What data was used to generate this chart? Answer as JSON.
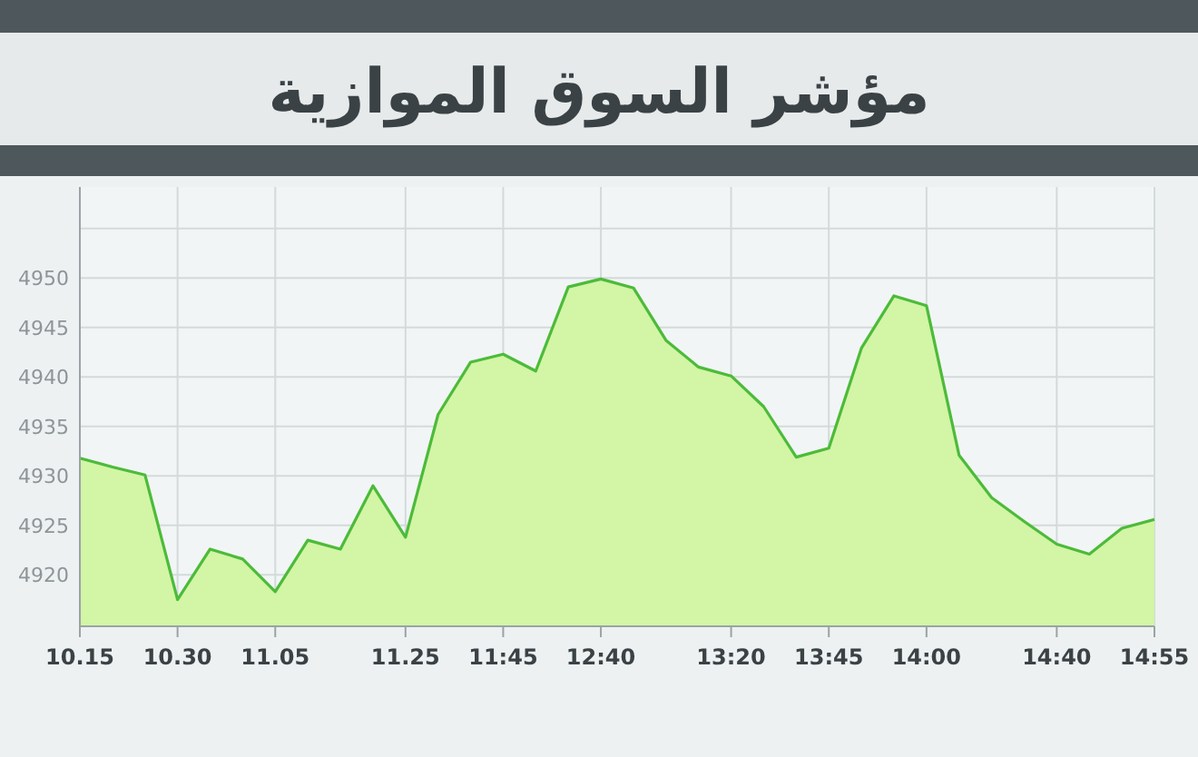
{
  "chart_data": {
    "type": "area",
    "title": "مؤشر السوق الموازية",
    "categories": [
      "10.15",
      null,
      null,
      "10.30",
      null,
      null,
      "11.05",
      null,
      null,
      null,
      "11.25",
      null,
      null,
      "11:45",
      null,
      null,
      "12:40",
      null,
      null,
      null,
      "13:20",
      null,
      null,
      "13:45",
      null,
      null,
      "14:00",
      null,
      null,
      null,
      "14:40",
      null,
      null,
      "14:55"
    ],
    "series": [
      {
        "color": "#4cbb3a",
        "values": [
          4931.8,
          4930.9,
          4930.1,
          4917.5,
          4922.6,
          4921.6,
          4918.3,
          4923.5,
          4922.6,
          4929.0,
          4923.8,
          4936.2,
          4941.5,
          4942.3,
          4940.6,
          4949.1,
          4949.9,
          4949.0,
          4943.7,
          4941.0,
          4940.1,
          4937.0,
          4931.9,
          4932.8,
          4942.9,
          4948.2,
          4947.2,
          4932.1,
          4927.8,
          4925.4,
          4923.1,
          4922.1,
          4924.7,
          4925.6
        ]
      }
    ],
    "ylim": [
      4914.8,
      4959.2
    ],
    "yticks": [
      4920,
      4925,
      4930,
      4935,
      4940,
      4945,
      4950,
      {
        "value": 4955,
        "label": null
      }
    ],
    "grid": true
  }
}
